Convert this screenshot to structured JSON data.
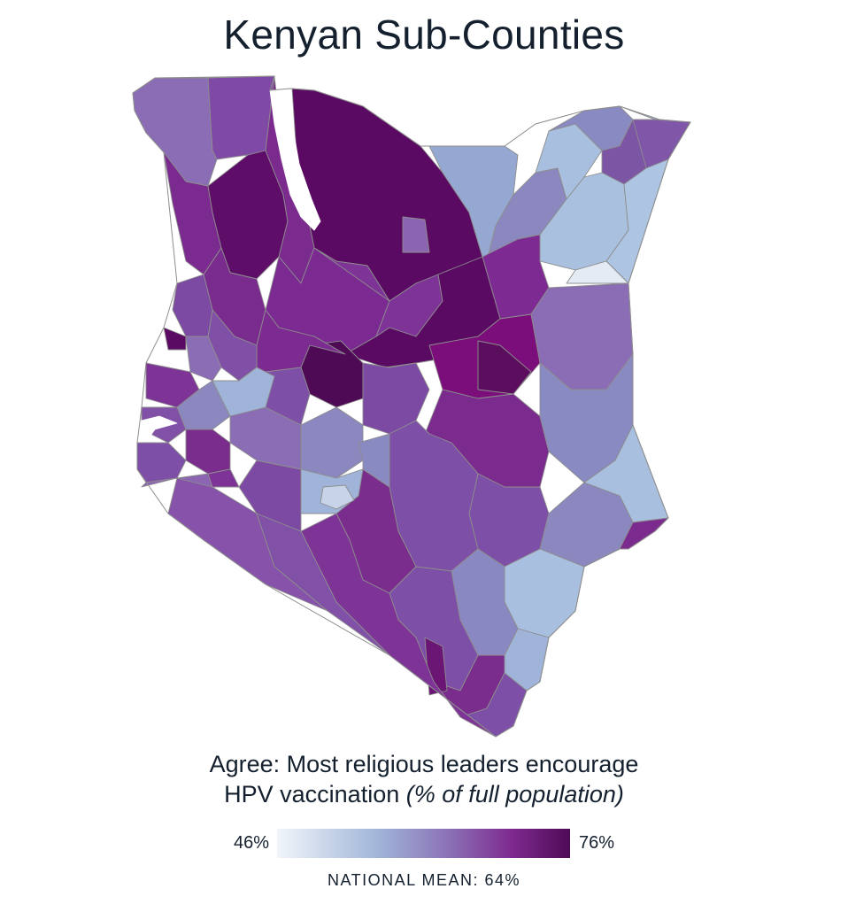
{
  "title": "Kenyan Sub-Counties",
  "caption": {
    "line1": "Agree: Most religious leaders encourage",
    "line2_plain": "HPV vaccination ",
    "line2_italic": "(% of full population)"
  },
  "legend": {
    "min_label": "46%",
    "max_label": "76%",
    "min_value": 46,
    "max_value": 76,
    "color_low": "#f1f5fa",
    "color_mid_low": "#9fb4d8",
    "color_mid": "#8a6db4",
    "color_mid_high": "#7e2b8f",
    "color_high": "#4f0a56"
  },
  "national_mean": "NATIONAL MEAN: 64%",
  "colors": {
    "boundary": "#8d8d8d",
    "water": "#ffffff"
  }
}
